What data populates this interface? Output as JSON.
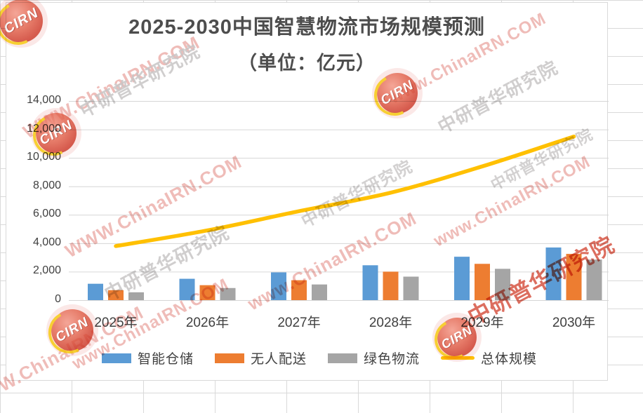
{
  "chart_data": {
    "type": "combo_bar_line",
    "title": "2025-2030中国智慧物流市场规模预测",
    "subtitle": "（单位：亿元）",
    "categories": [
      "2025年",
      "2026年",
      "2027年",
      "2028年",
      "2029年",
      "2030年"
    ],
    "series": [
      {
        "name": "智能仓储",
        "type": "bar",
        "color": "#5B9BD5",
        "values": [
          1150,
          1500,
          1950,
          2450,
          3050,
          3700
        ]
      },
      {
        "name": "无人配送",
        "type": "bar",
        "color": "#ED7D31",
        "values": [
          700,
          1050,
          1400,
          2000,
          2550,
          3250
        ]
      },
      {
        "name": "绿色物流",
        "type": "bar",
        "color": "#A5A5A5",
        "values": [
          550,
          850,
          1100,
          1650,
          2200,
          2850
        ]
      },
      {
        "name": "总体规模",
        "type": "line",
        "color": "#FFC000",
        "values": [
          3800,
          4900,
          6250,
          7550,
          9400,
          11500
        ]
      }
    ],
    "ylim": [
      0,
      14000
    ],
    "ytick_values": [
      0,
      2000,
      4000,
      6000,
      8000,
      10000,
      12000,
      14000
    ],
    "ytick_labels": [
      "0",
      "2,000",
      "4,000",
      "6,000",
      "8,000",
      "10,000",
      "12,000",
      "14,000"
    ],
    "grid": true,
    "gridline_color": "#d6d6d6",
    "legend_position": "bottom"
  },
  "watermark": {
    "logo": "CIRN",
    "site": "www.ChinaIRN.COM",
    "site_upper": "WWW.ChinaIRN.COM",
    "org": "中研普华研究院",
    "colors": {
      "pink": "#eeb5b1",
      "gray": "#c8c6c6",
      "red": "#d44a38",
      "logo_red": "#cc3322",
      "logo_yellow": "#f5c400"
    }
  }
}
